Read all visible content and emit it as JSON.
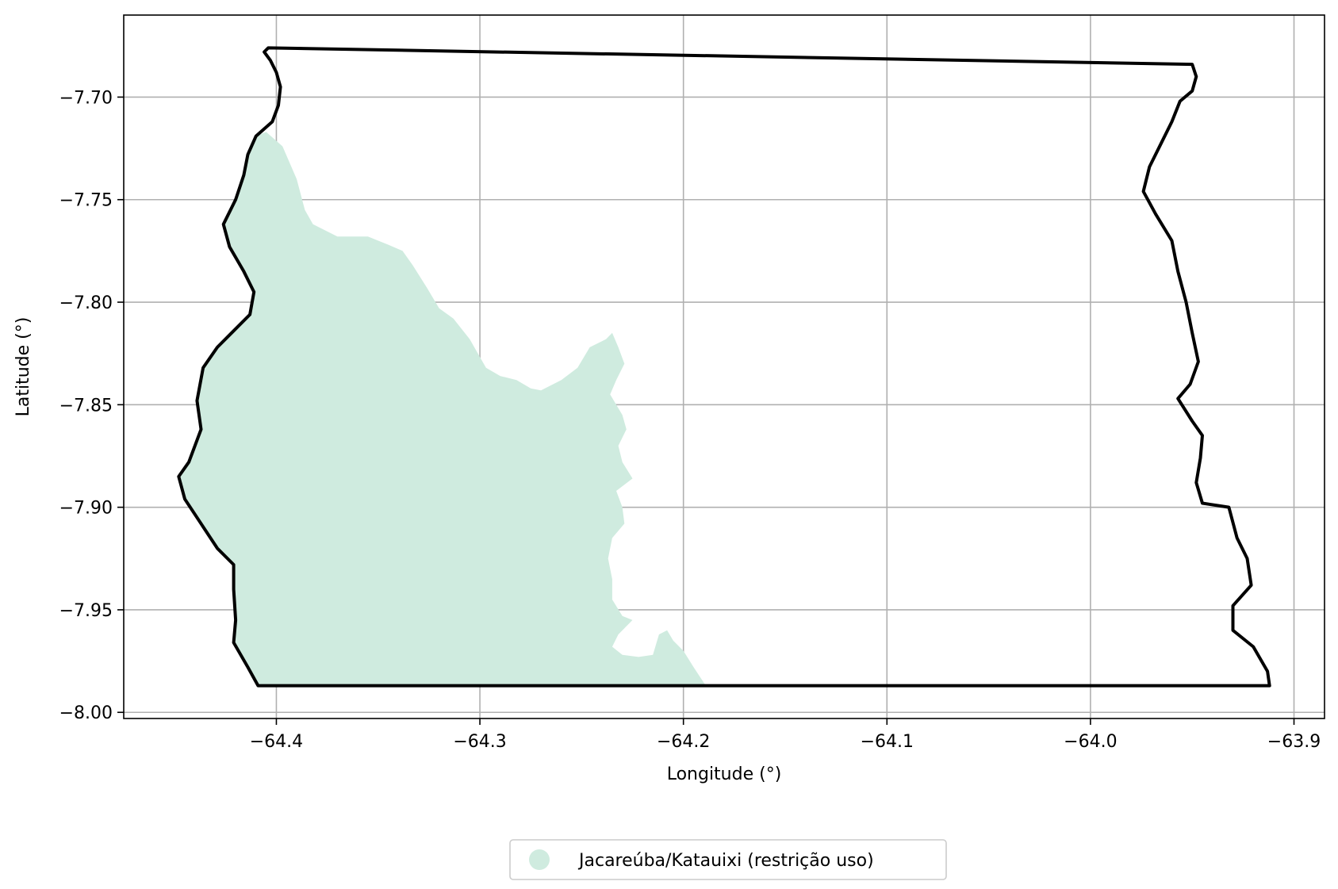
{
  "map": {
    "xlabel": "Longitude (°)",
    "ylabel": "Latitude (°)",
    "xlim": [
      -64.475,
      -63.885
    ],
    "ylim": [
      -8.003,
      -7.66
    ],
    "grid": true,
    "x_ticks": [
      -64.4,
      -64.3,
      -64.2,
      -64.1,
      -64.0,
      -63.9
    ],
    "x_tick_labels": [
      "−64.4",
      "−64.3",
      "−64.2",
      "−64.1",
      "−64.0",
      "−63.9"
    ],
    "y_ticks": [
      -7.7,
      -7.75,
      -7.8,
      -7.85,
      -7.9,
      -7.95,
      -8.0
    ],
    "y_tick_labels": [
      "−7.70",
      "−7.75",
      "−7.80",
      "−7.85",
      "−7.90",
      "−7.95",
      "−8.00"
    ],
    "legend": {
      "position": "bottom-center",
      "entries": [
        {
          "label": "Jacareúba/Katauixi (restrição uso)",
          "color": "#cfebdf"
        }
      ]
    },
    "colors": {
      "boundary": "#000000",
      "area_fill": "#cfebdf",
      "grid": "#b0b0b0"
    },
    "boundary": [
      [
        -64.404,
        -7.676
      ],
      [
        -63.95,
        -7.684
      ],
      [
        -63.948,
        -7.69
      ],
      [
        -63.95,
        -7.697
      ],
      [
        -63.956,
        -7.702
      ],
      [
        -63.96,
        -7.712
      ],
      [
        -63.965,
        -7.722
      ],
      [
        -63.971,
        -7.734
      ],
      [
        -63.974,
        -7.746
      ],
      [
        -63.968,
        -7.757
      ],
      [
        -63.96,
        -7.77
      ],
      [
        -63.957,
        -7.785
      ],
      [
        -63.953,
        -7.8
      ],
      [
        -63.95,
        -7.815
      ],
      [
        -63.947,
        -7.829
      ],
      [
        -63.951,
        -7.84
      ],
      [
        -63.957,
        -7.847
      ],
      [
        -63.95,
        -7.858
      ],
      [
        -63.945,
        -7.865
      ],
      [
        -63.946,
        -7.876
      ],
      [
        -63.948,
        -7.888
      ],
      [
        -63.945,
        -7.898
      ],
      [
        -63.932,
        -7.9
      ],
      [
        -63.928,
        -7.915
      ],
      [
        -63.923,
        -7.925
      ],
      [
        -63.921,
        -7.938
      ],
      [
        -63.93,
        -7.948
      ],
      [
        -63.93,
        -7.96
      ],
      [
        -63.92,
        -7.968
      ],
      [
        -63.913,
        -7.98
      ],
      [
        -63.912,
        -7.987
      ],
      [
        -64.409,
        -7.987
      ],
      [
        -64.414,
        -7.978
      ],
      [
        -64.421,
        -7.966
      ],
      [
        -64.42,
        -7.955
      ],
      [
        -64.421,
        -7.94
      ],
      [
        -64.421,
        -7.928
      ],
      [
        -64.429,
        -7.92
      ],
      [
        -64.437,
        -7.908
      ],
      [
        -64.445,
        -7.896
      ],
      [
        -64.448,
        -7.885
      ],
      [
        -64.443,
        -7.878
      ],
      [
        -64.437,
        -7.862
      ],
      [
        -64.439,
        -7.848
      ],
      [
        -64.436,
        -7.832
      ],
      [
        -64.429,
        -7.822
      ],
      [
        -64.422,
        -7.815
      ],
      [
        -64.413,
        -7.806
      ],
      [
        -64.411,
        -7.795
      ],
      [
        -64.416,
        -7.785
      ],
      [
        -64.423,
        -7.773
      ],
      [
        -64.426,
        -7.762
      ],
      [
        -64.42,
        -7.75
      ],
      [
        -64.416,
        -7.738
      ],
      [
        -64.414,
        -7.728
      ],
      [
        -64.41,
        -7.719
      ],
      [
        -64.402,
        -7.712
      ],
      [
        -64.399,
        -7.704
      ],
      [
        -64.398,
        -7.695
      ],
      [
        -64.4,
        -7.688
      ],
      [
        -64.403,
        -7.682
      ],
      [
        -64.406,
        -7.678
      ],
      [
        -64.404,
        -7.676
      ]
    ],
    "area": [
      [
        -64.405,
        -7.717
      ],
      [
        -64.397,
        -7.724
      ],
      [
        -64.39,
        -7.74
      ],
      [
        -64.386,
        -7.755
      ],
      [
        -64.382,
        -7.762
      ],
      [
        -64.37,
        -7.768
      ],
      [
        -64.355,
        -7.768
      ],
      [
        -64.345,
        -7.772
      ],
      [
        -64.338,
        -7.775
      ],
      [
        -64.333,
        -7.782
      ],
      [
        -64.326,
        -7.793
      ],
      [
        -64.32,
        -7.803
      ],
      [
        -64.313,
        -7.808
      ],
      [
        -64.305,
        -7.818
      ],
      [
        -64.297,
        -7.832
      ],
      [
        -64.29,
        -7.836
      ],
      [
        -64.282,
        -7.838
      ],
      [
        -64.275,
        -7.842
      ],
      [
        -64.27,
        -7.843
      ],
      [
        -64.26,
        -7.838
      ],
      [
        -64.252,
        -7.832
      ],
      [
        -64.246,
        -7.822
      ],
      [
        -64.238,
        -7.818
      ],
      [
        -64.235,
        -7.815
      ],
      [
        -64.232,
        -7.822
      ],
      [
        -64.229,
        -7.83
      ],
      [
        -64.233,
        -7.838
      ],
      [
        -64.236,
        -7.845
      ],
      [
        -64.23,
        -7.855
      ],
      [
        -64.228,
        -7.862
      ],
      [
        -64.232,
        -7.87
      ],
      [
        -64.23,
        -7.878
      ],
      [
        -64.225,
        -7.886
      ],
      [
        -64.233,
        -7.892
      ],
      [
        -64.23,
        -7.9
      ],
      [
        -64.229,
        -7.908
      ],
      [
        -64.235,
        -7.915
      ],
      [
        -64.237,
        -7.925
      ],
      [
        -64.235,
        -7.935
      ],
      [
        -64.235,
        -7.945
      ],
      [
        -64.23,
        -7.953
      ],
      [
        -64.225,
        -7.955
      ],
      [
        -64.232,
        -7.962
      ],
      [
        -64.235,
        -7.968
      ],
      [
        -64.23,
        -7.972
      ],
      [
        -64.222,
        -7.973
      ],
      [
        -64.215,
        -7.972
      ],
      [
        -64.212,
        -7.962
      ],
      [
        -64.208,
        -7.96
      ],
      [
        -64.205,
        -7.965
      ],
      [
        -64.2,
        -7.97
      ],
      [
        -64.195,
        -7.978
      ],
      [
        -64.189,
        -7.987
      ],
      [
        -64.409,
        -7.987
      ],
      [
        -64.414,
        -7.978
      ],
      [
        -64.421,
        -7.966
      ],
      [
        -64.42,
        -7.955
      ],
      [
        -64.421,
        -7.94
      ],
      [
        -64.421,
        -7.928
      ],
      [
        -64.429,
        -7.92
      ],
      [
        -64.437,
        -7.908
      ],
      [
        -64.445,
        -7.896
      ],
      [
        -64.448,
        -7.885
      ],
      [
        -64.443,
        -7.878
      ],
      [
        -64.437,
        -7.862
      ],
      [
        -64.439,
        -7.848
      ],
      [
        -64.436,
        -7.832
      ],
      [
        -64.429,
        -7.822
      ],
      [
        -64.422,
        -7.815
      ],
      [
        -64.413,
        -7.806
      ],
      [
        -64.411,
        -7.795
      ],
      [
        -64.416,
        -7.785
      ],
      [
        -64.423,
        -7.773
      ],
      [
        -64.426,
        -7.762
      ],
      [
        -64.42,
        -7.75
      ],
      [
        -64.416,
        -7.738
      ],
      [
        -64.414,
        -7.728
      ],
      [
        -64.41,
        -7.719
      ],
      [
        -64.405,
        -7.717
      ]
    ]
  }
}
